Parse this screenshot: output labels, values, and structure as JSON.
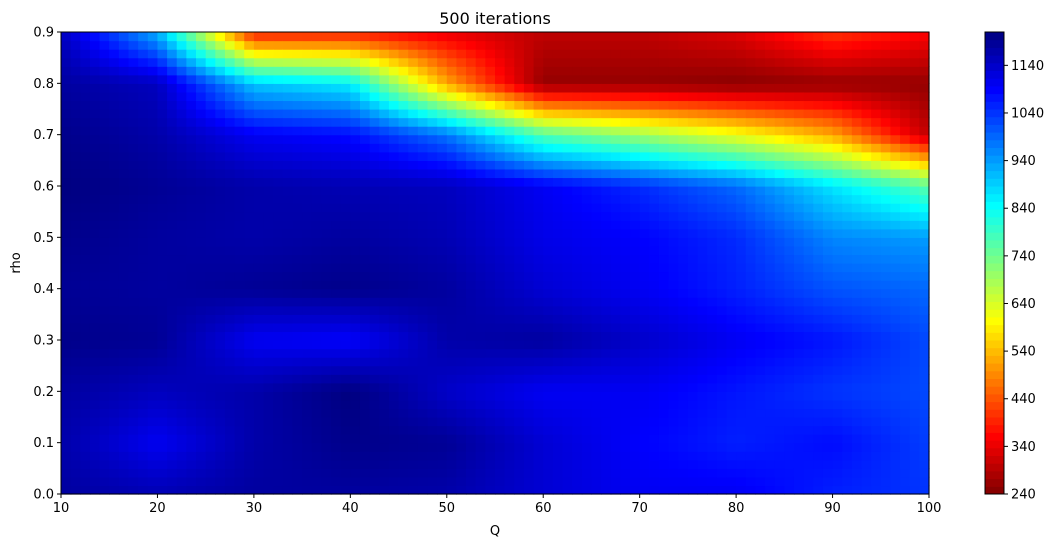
{
  "chart_data": {
    "type": "heatmap",
    "title": "500 iterations",
    "xlabel": "Q",
    "ylabel": "rho",
    "x": [
      10,
      20,
      30,
      40,
      50,
      60,
      70,
      80,
      90,
      100
    ],
    "y": [
      0.0,
      0.1,
      0.2,
      0.3,
      0.4,
      0.5,
      0.6,
      0.7,
      0.8,
      0.9
    ],
    "xlim": [
      10,
      100
    ],
    "ylim": [
      0.0,
      0.9
    ],
    "x_ticks": [
      "10",
      "20",
      "30",
      "40",
      "50",
      "60",
      "70",
      "80",
      "90",
      "100"
    ],
    "y_ticks": [
      "0.0",
      "0.1",
      "0.2",
      "0.3",
      "0.4",
      "0.5",
      "0.6",
      "0.7",
      "0.8",
      "0.9"
    ],
    "z": [
      [
        1180,
        1160,
        1180,
        1180,
        1170,
        1130,
        1100,
        1100,
        1060,
        1040
      ],
      [
        1170,
        1100,
        1170,
        1200,
        1190,
        1130,
        1090,
        1060,
        1080,
        1030
      ],
      [
        1180,
        1150,
        1170,
        1210,
        1140,
        1100,
        1100,
        1070,
        1040,
        1020
      ],
      [
        1200,
        1190,
        1100,
        1090,
        1170,
        1180,
        1140,
        1100,
        1070,
        1020
      ],
      [
        1190,
        1180,
        1190,
        1200,
        1180,
        1130,
        1100,
        1060,
        1010,
        990
      ],
      [
        1200,
        1180,
        1170,
        1180,
        1160,
        1110,
        1090,
        1050,
        960,
        940
      ],
      [
        1210,
        1190,
        1170,
        1160,
        1150,
        1100,
        1050,
        990,
        870,
        760
      ],
      [
        1200,
        1170,
        1100,
        1080,
        980,
        770,
        700,
        620,
        520,
        300
      ],
      [
        1180,
        1150,
        900,
        860,
        520,
        260,
        260,
        250,
        260,
        260
      ],
      [
        1150,
        920,
        380,
        380,
        340,
        300,
        300,
        330,
        410,
        360
      ]
    ],
    "colormap": "jet_reversed",
    "colorbar": {
      "range": [
        240,
        1210
      ],
      "ticks": [
        240,
        340,
        440,
        540,
        640,
        740,
        840,
        940,
        1040,
        1140
      ]
    },
    "grid": false,
    "legend": "none"
  }
}
